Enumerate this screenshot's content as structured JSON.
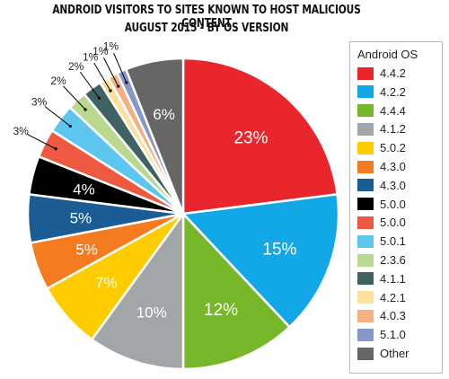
{
  "chart_data": {
    "type": "pie",
    "title": "ANDROID VISITORS TO SITES KNOWN TO HOST MALICIOUS CONTENT",
    "subtitle": "AUGUST 2015 - BY OS VERSION",
    "legend_title": "Android OS",
    "legend_placement": "right",
    "slices": [
      {
        "label": "4.4.2",
        "value": 23,
        "value_label": "23%",
        "color": "#e8262b"
      },
      {
        "label": "4.2.2",
        "value": 15,
        "value_label": "15%",
        "color": "#12a8e8"
      },
      {
        "label": "4.4.4",
        "value": 12,
        "value_label": "12%",
        "color": "#76b82a"
      },
      {
        "label": "4.1.2",
        "value": 10,
        "value_label": "10%",
        "color": "#a3a6a8"
      },
      {
        "label": "5.0.2",
        "value": 7,
        "value_label": "7%",
        "color": "#ffcc00"
      },
      {
        "label": "4.3.0",
        "value": 5,
        "value_label": "5%",
        "color": "#f47b20"
      },
      {
        "label": "4.3.0",
        "value": 5,
        "value_label": "5%",
        "color": "#1c5c94"
      },
      {
        "label": "5.0.0",
        "value": 4,
        "value_label": "4%",
        "color": "#000000"
      },
      {
        "label": "5.0.0",
        "value": 3,
        "value_label": "3%",
        "color": "#ee5a41"
      },
      {
        "label": "5.0.1",
        "value": 3,
        "value_label": "3%",
        "color": "#5cc6ef"
      },
      {
        "label": "2.3.6",
        "value": 2,
        "value_label": "2%",
        "color": "#b9d98e"
      },
      {
        "label": "4.1.1",
        "value": 2,
        "value_label": "2%",
        "color": "#3f6263"
      },
      {
        "label": "4.2.1",
        "value": 1,
        "value_label": "1%",
        "color": "#fde09a"
      },
      {
        "label": "4.0.3",
        "value": 1,
        "value_label": "1%",
        "color": "#f5b082"
      },
      {
        "label": "5.1.0",
        "value": 1,
        "value_label": "1%",
        "color": "#8797c8"
      },
      {
        "label": "Other",
        "value": 6,
        "value_label": "6%",
        "color": "#666666"
      }
    ]
  }
}
